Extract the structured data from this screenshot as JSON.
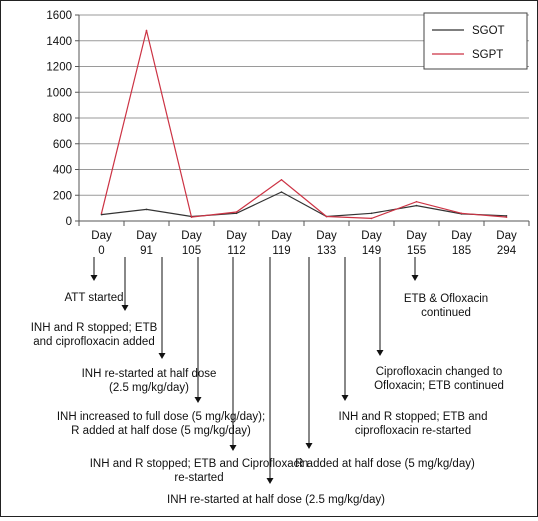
{
  "chart_data": {
    "type": "line",
    "categories": [
      [
        "Day",
        "0"
      ],
      [
        "Day",
        "91"
      ],
      [
        "Day",
        "105"
      ],
      [
        "Day",
        "112"
      ],
      [
        "Day",
        "119"
      ],
      [
        "Day",
        "133"
      ],
      [
        "Day",
        "149"
      ],
      [
        "Day",
        "155"
      ],
      [
        "Day",
        "185"
      ],
      [
        "Day",
        "294"
      ]
    ],
    "series": [
      {
        "name": "SGOT",
        "color": "#333333",
        "values": [
          50,
          90,
          35,
          60,
          225,
          35,
          60,
          120,
          55,
          40
        ]
      },
      {
        "name": "SGPT",
        "color": "#cc3344",
        "values": [
          60,
          1480,
          30,
          70,
          320,
          35,
          20,
          150,
          60,
          30
        ]
      }
    ],
    "yticks": [
      "0",
      "200",
      "400",
      "600",
      "800",
      "1000",
      "1200",
      "1400",
      "1600"
    ],
    "ylim": [
      0,
      1600
    ],
    "grid": true,
    "legend": "top-right",
    "annotations": [
      {
        "day_index": 0,
        "lines": [
          "ATT started"
        ]
      },
      {
        "day_index": 1,
        "lines": [
          "INH and R stopped; ETB",
          "and ciprofloxacin added"
        ]
      },
      {
        "day_index": 2,
        "lines": [
          "INH re-started at half dose",
          "(2.5 mg/kg/day)"
        ]
      },
      {
        "day_index": 3,
        "lines": [
          "INH increased to full dose (5 mg/kg/day);",
          "R added at half dose (5 mg/kg/day)"
        ]
      },
      {
        "day_index": 4,
        "lines": [
          "INH and R stopped; ETB and Ciprofloxacin",
          "re-started"
        ]
      },
      {
        "day_index": 5,
        "lines": [
          "INH re-started at half dose (2.5 mg/kg/day)"
        ]
      },
      {
        "day_index": 6,
        "lines": [
          "R added at half dose (5 mg/kg/day)"
        ]
      },
      {
        "day_index": 7,
        "lines": [
          "INH and R stopped; ETB and",
          "ciprofloxacin re-started"
        ]
      },
      {
        "day_index": 8,
        "lines": [
          "Ciprofloxacin changed to",
          "Ofloxacin; ETB continued"
        ]
      },
      {
        "day_index": 9,
        "lines": [
          "ETB & Ofloxacin",
          "continued"
        ]
      }
    ]
  }
}
